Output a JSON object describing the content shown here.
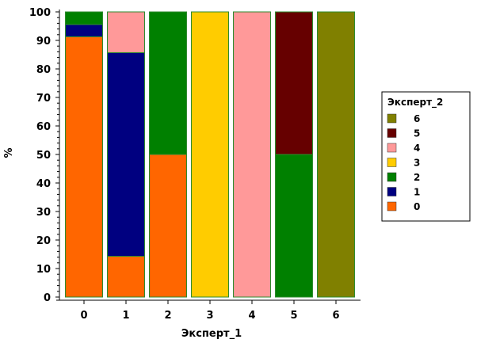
{
  "chart_data": {
    "type": "bar",
    "stacked": true,
    "xlabel": "Эксперт_1",
    "ylabel": "%",
    "ylim": [
      0,
      100
    ],
    "yticks": [
      0,
      10,
      20,
      30,
      40,
      50,
      60,
      70,
      80,
      90,
      100
    ],
    "categories": [
      "0",
      "1",
      "2",
      "3",
      "4",
      "5",
      "6"
    ],
    "grid": false,
    "legend": {
      "title": "Эксперт_2",
      "placement": "right"
    },
    "series": [
      {
        "name": "0",
        "color": "#FF6600",
        "values": [
          91.3,
          14.3,
          50,
          0,
          0,
          0,
          0
        ]
      },
      {
        "name": "1",
        "color": "#000080",
        "values": [
          4.3,
          71.4,
          0,
          0,
          0,
          0,
          0
        ]
      },
      {
        "name": "2",
        "color": "#008000",
        "values": [
          4.4,
          0,
          50,
          0,
          0,
          50,
          0
        ]
      },
      {
        "name": "3",
        "color": "#FFCC00",
        "values": [
          0,
          0,
          0,
          100,
          0,
          0,
          0
        ]
      },
      {
        "name": "4",
        "color": "#FF9999",
        "values": [
          0,
          14.3,
          0,
          0,
          100,
          0,
          0
        ]
      },
      {
        "name": "5",
        "color": "#660000",
        "values": [
          0,
          0,
          0,
          0,
          0,
          50,
          0
        ]
      },
      {
        "name": "6",
        "color": "#808000",
        "values": [
          0,
          0,
          0,
          0,
          0,
          0,
          100
        ]
      }
    ],
    "bar_edge_color": "#2E8B2E"
  }
}
